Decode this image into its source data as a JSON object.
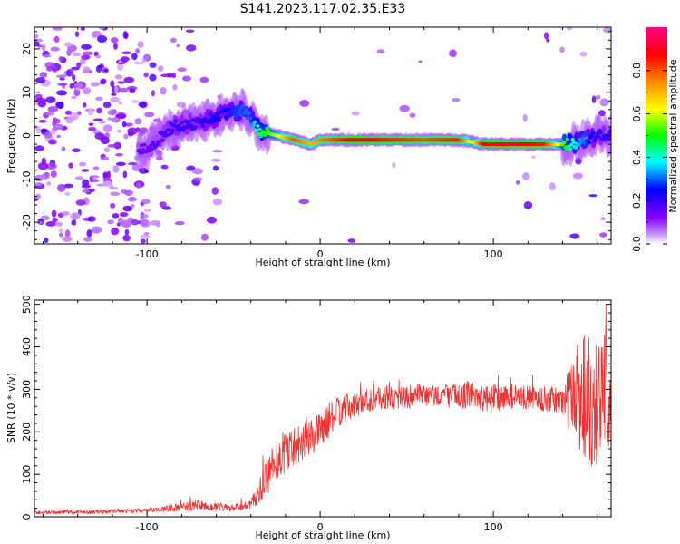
{
  "title": "S141.2023.117.02.35.E33",
  "chart_data": [
    {
      "type": "heatmap",
      "xlabel": "Height of straight line (km)",
      "ylabel": "Frequency (Hz)",
      "xlim": [
        -165,
        168
      ],
      "ylim": [
        -25,
        25
      ],
      "x_ticks": [
        -100,
        0,
        100
      ],
      "y_ticks": [
        -20,
        -10,
        0,
        10,
        20
      ],
      "colorbar": {
        "label": "Normalized spectral amplitude",
        "range": [
          0,
          1
        ],
        "ticks": [
          "0.0",
          "0.2",
          "0.4",
          "0.6",
          "0.8"
        ],
        "colormap": [
          "#ffffff",
          "#8800ff",
          "#0000ff",
          "#00ffff",
          "#00ff00",
          "#ffff00",
          "#ff8800",
          "#ff0000",
          "#ff0088"
        ]
      },
      "dominant_ridge": {
        "x": [
          -100,
          -85,
          -70,
          -55,
          -45,
          -40,
          -35,
          -25,
          -15,
          -5,
          0,
          20,
          40,
          60,
          80,
          88,
          95,
          110,
          130,
          145,
          160,
          168
        ],
        "frequency": [
          -3,
          2,
          3,
          5,
          6,
          4,
          1,
          0,
          -1,
          -2,
          -1,
          -1,
          -1,
          -1,
          -1,
          -1.5,
          -2,
          -2,
          -2,
          -2,
          0,
          0
        ],
        "peak_amplitude": [
          0.15,
          0.2,
          0.2,
          0.25,
          0.3,
          0.3,
          0.45,
          0.6,
          0.8,
          0.7,
          0.75,
          0.9,
          0.85,
          0.8,
          0.85,
          0.6,
          0.9,
          0.9,
          0.85,
          0.4,
          0.2,
          0.2
        ]
      }
    },
    {
      "type": "line",
      "xlabel": "Height of straight line (km)",
      "ylabel": "SNR (10 * v/v)",
      "xlim": [
        -165,
        168
      ],
      "ylim": [
        0,
        510
      ],
      "x_ticks": [
        -100,
        0,
        100
      ],
      "y_ticks": [
        0,
        100,
        200,
        300,
        400,
        500
      ],
      "color": "#ee3333",
      "series": [
        {
          "x": [
            -165,
            -130,
            -100,
            -80,
            -70,
            -60,
            -50,
            -40,
            -35,
            -30,
            -25,
            -20,
            -15,
            -10,
            -5,
            0,
            5,
            10,
            15,
            20,
            25,
            30,
            40,
            50,
            60,
            70,
            80,
            90,
            95,
            100,
            110,
            120,
            130,
            140,
            145,
            150,
            155,
            160,
            165,
            168
          ],
          "y": [
            10,
            12,
            15,
            22,
            28,
            22,
            20,
            28,
            60,
            95,
            130,
            160,
            165,
            185,
            190,
            205,
            225,
            245,
            255,
            262,
            272,
            278,
            280,
            282,
            285,
            285,
            285,
            290,
            275,
            280,
            283,
            280,
            277,
            272,
            280,
            300,
            280,
            270,
            300,
            280
          ],
          "spread": [
            4,
            5,
            5,
            10,
            14,
            10,
            8,
            12,
            30,
            45,
            55,
            55,
            50,
            50,
            45,
            40,
            40,
            35,
            35,
            30,
            30,
            30,
            30,
            28,
            28,
            28,
            30,
            35,
            30,
            35,
            30,
            28,
            30,
            35,
            90,
            160,
            170,
            150,
            130,
            120
          ]
        }
      ]
    }
  ]
}
